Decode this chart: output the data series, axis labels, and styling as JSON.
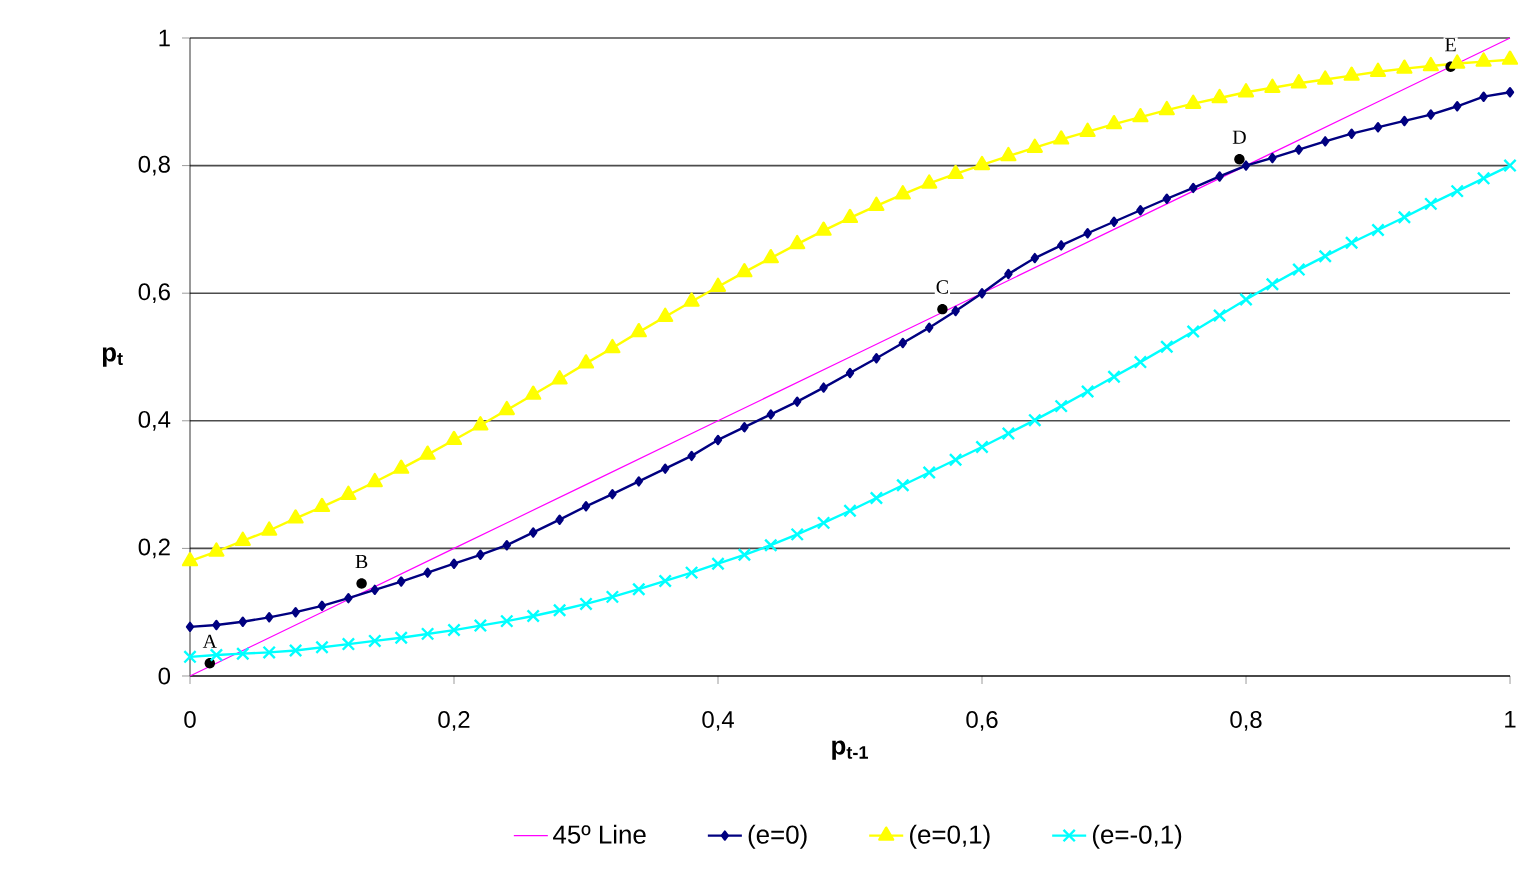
{
  "chart_data": {
    "type": "line",
    "xlabel": "p$_{t-1}$",
    "ylabel": "p$_{t}$",
    "x": [
      0,
      0.02,
      0.04,
      0.06,
      0.08,
      0.1,
      0.12,
      0.14,
      0.16,
      0.18,
      0.2,
      0.22,
      0.24,
      0.26,
      0.28,
      0.3,
      0.32,
      0.34,
      0.36,
      0.38,
      0.4,
      0.42,
      0.44,
      0.46,
      0.48,
      0.5,
      0.52,
      0.54,
      0.56,
      0.58,
      0.6,
      0.62,
      0.64,
      0.66,
      0.68,
      0.7,
      0.72,
      0.74,
      0.76,
      0.78,
      0.8,
      0.82,
      0.84,
      0.86,
      0.88,
      0.9,
      0.92,
      0.94,
      0.96,
      0.98,
      1
    ],
    "series": [
      {
        "name": "45º Line",
        "color": "#ff00ff",
        "marker": "none",
        "x": [
          0,
          0.1,
          0.2,
          0.3,
          0.4,
          0.5,
          0.6,
          0.7,
          0.8,
          0.9,
          1
        ],
        "values": [
          0,
          0.1,
          0.2,
          0.3,
          0.4,
          0.5,
          0.6,
          0.7,
          0.8,
          0.9,
          1
        ]
      },
      {
        "name": "(e=0)",
        "color": "#000080",
        "marker": "diamond",
        "values": [
          0.077,
          0.08,
          0.085,
          0.092,
          0.1,
          0.11,
          0.122,
          0.135,
          0.148,
          0.162,
          0.176,
          0.19,
          0.205,
          0.225,
          0.245,
          0.266,
          0.285,
          0.305,
          0.325,
          0.345,
          0.37,
          0.39,
          0.41,
          0.43,
          0.452,
          0.475,
          0.498,
          0.522,
          0.546,
          0.572,
          0.6,
          0.63,
          0.655,
          0.675,
          0.694,
          0.712,
          0.73,
          0.748,
          0.765,
          0.783,
          0.8,
          0.812,
          0.825,
          0.838,
          0.85,
          0.86,
          0.87,
          0.88,
          0.893,
          0.908,
          0.915
        ]
      },
      {
        "name": "(e=0,1)",
        "color": "#ffff00",
        "marker": "triangle",
        "values": [
          0.18,
          0.195,
          0.212,
          0.228,
          0.247,
          0.265,
          0.284,
          0.304,
          0.325,
          0.347,
          0.37,
          0.393,
          0.417,
          0.441,
          0.465,
          0.49,
          0.514,
          0.539,
          0.563,
          0.587,
          0.61,
          0.633,
          0.655,
          0.677,
          0.698,
          0.718,
          0.737,
          0.755,
          0.772,
          0.787,
          0.801,
          0.815,
          0.828,
          0.841,
          0.853,
          0.865,
          0.876,
          0.887,
          0.897,
          0.906,
          0.915,
          0.922,
          0.929,
          0.935,
          0.941,
          0.947,
          0.952,
          0.956,
          0.96,
          0.963,
          0.966
        ]
      },
      {
        "name": "(e=-0,1)",
        "color": "#00ffff",
        "marker": "cross",
        "values": [
          0.03,
          0.033,
          0.035,
          0.037,
          0.04,
          0.045,
          0.05,
          0.055,
          0.06,
          0.066,
          0.072,
          0.079,
          0.086,
          0.094,
          0.103,
          0.113,
          0.124,
          0.136,
          0.149,
          0.162,
          0.176,
          0.19,
          0.205,
          0.222,
          0.24,
          0.259,
          0.279,
          0.299,
          0.319,
          0.339,
          0.359,
          0.38,
          0.401,
          0.423,
          0.446,
          0.469,
          0.492,
          0.516,
          0.54,
          0.565,
          0.59,
          0.614,
          0.637,
          0.658,
          0.679,
          0.699,
          0.719,
          0.74,
          0.76,
          0.78,
          0.8
        ]
      }
    ],
    "annotations": [
      {
        "text": "A",
        "x": 0.015,
        "y": 0.02
      },
      {
        "text": "B",
        "x": 0.13,
        "y": 0.145
      },
      {
        "text": "C",
        "x": 0.57,
        "y": 0.575
      },
      {
        "text": "D",
        "x": 0.795,
        "y": 0.81
      },
      {
        "text": "E",
        "x": 0.955,
        "y": 0.955
      }
    ],
    "xlim": [
      0,
      1
    ],
    "ylim": [
      0,
      1
    ],
    "xticks": [
      0,
      {
        "value": 0.2,
        "label": "0,2"
      },
      {
        "value": 0.4,
        "label": "0,4"
      },
      {
        "value": 0.6,
        "label": "0,6"
      },
      {
        "value": 0.8,
        "label": "0,8"
      },
      1
    ],
    "yticks": [
      0,
      {
        "value": 0.2,
        "label": "0,2"
      },
      {
        "value": 0.4,
        "label": "0,4"
      },
      {
        "value": 0.6,
        "label": "0,6"
      },
      {
        "value": 0.8,
        "label": "0,8"
      },
      1
    ],
    "grid": "y",
    "legend": "bottom",
    "line_style": "solid"
  }
}
